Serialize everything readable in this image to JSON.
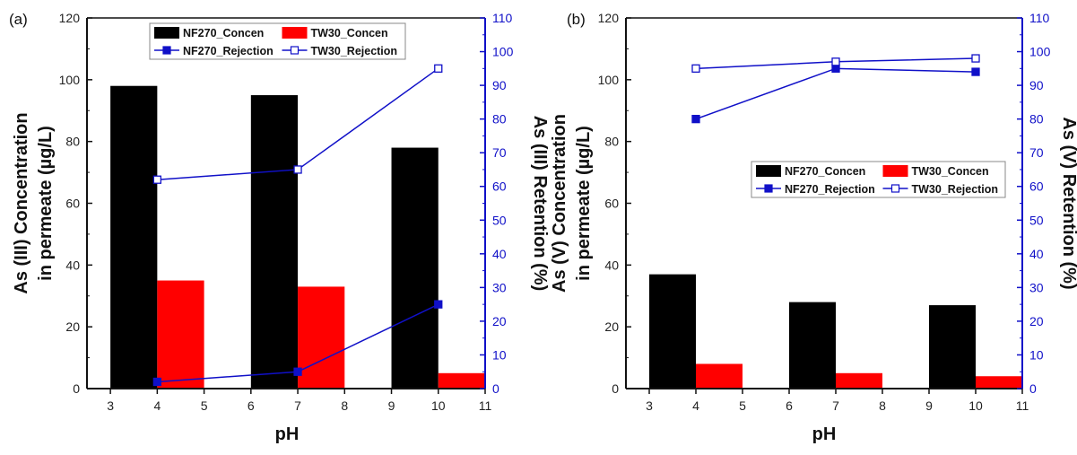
{
  "chart_data": [
    {
      "type": "bar",
      "panel_label": "(a)",
      "x_ticks": [
        3,
        4,
        5,
        6,
        7,
        8,
        9,
        10,
        11
      ],
      "xlabel": "pH",
      "ylabel_lines": [
        "As (III) Concentration",
        "in permeate (µg/L)"
      ],
      "ylabel_right": "As (III) Retention (%)",
      "ylim": [
        0,
        120
      ],
      "yticks": [
        0,
        20,
        40,
        60,
        80,
        100,
        120
      ],
      "ylim_right": [
        0,
        110
      ],
      "yticks_right": [
        0,
        10,
        20,
        30,
        40,
        50,
        60,
        70,
        80,
        90,
        100,
        110
      ],
      "bars": [
        {
          "name": "NF270_Concen",
          "color": "#000000",
          "x": [
            3.5,
            6.5,
            9.5
          ],
          "values": [
            98,
            95,
            78
          ]
        },
        {
          "name": "TW30_Concen",
          "color": "#ff0000",
          "x": [
            4.5,
            7.5,
            10.5
          ],
          "values": [
            35,
            33,
            5
          ]
        }
      ],
      "lines": [
        {
          "name": "NF270_Rejection",
          "color": "#1010c8",
          "marker": "filled-square",
          "x": [
            4,
            7,
            10
          ],
          "values": [
            2,
            5,
            25
          ]
        },
        {
          "name": "TW30_Rejection",
          "color": "#1010c8",
          "marker": "open-square",
          "x": [
            4,
            7,
            10
          ],
          "values": [
            62,
            65,
            95
          ]
        }
      ],
      "legend_position": "top-center"
    },
    {
      "type": "bar",
      "panel_label": "(b)",
      "x_ticks": [
        3,
        4,
        5,
        6,
        7,
        8,
        9,
        10,
        11
      ],
      "xlabel": "pH",
      "ylabel_lines": [
        "As (V) Concentration",
        "in permeate (µg/L)"
      ],
      "ylabel_right": "As (V) Retention (%)",
      "ylim": [
        0,
        120
      ],
      "yticks": [
        0,
        20,
        40,
        60,
        80,
        100,
        120
      ],
      "ylim_right": [
        0,
        110
      ],
      "yticks_right": [
        0,
        10,
        20,
        30,
        40,
        50,
        60,
        70,
        80,
        90,
        100,
        110
      ],
      "bars": [
        {
          "name": "NF270_Concen",
          "color": "#000000",
          "x": [
            3.5,
            6.5,
            9.5
          ],
          "values": [
            37,
            28,
            27
          ]
        },
        {
          "name": "TW30_Concen",
          "color": "#ff0000",
          "x": [
            4.5,
            7.5,
            10.5
          ],
          "values": [
            8,
            5,
            4
          ]
        }
      ],
      "lines": [
        {
          "name": "NF270_Rejection",
          "color": "#1010c8",
          "marker": "filled-square",
          "x": [
            4,
            7,
            10
          ],
          "values": [
            80,
            95,
            94
          ]
        },
        {
          "name": "TW30_Rejection",
          "color": "#1010c8",
          "marker": "open-square",
          "x": [
            4,
            7,
            10
          ],
          "values": [
            95,
            97,
            98
          ]
        }
      ],
      "legend_position": "center-right"
    }
  ]
}
